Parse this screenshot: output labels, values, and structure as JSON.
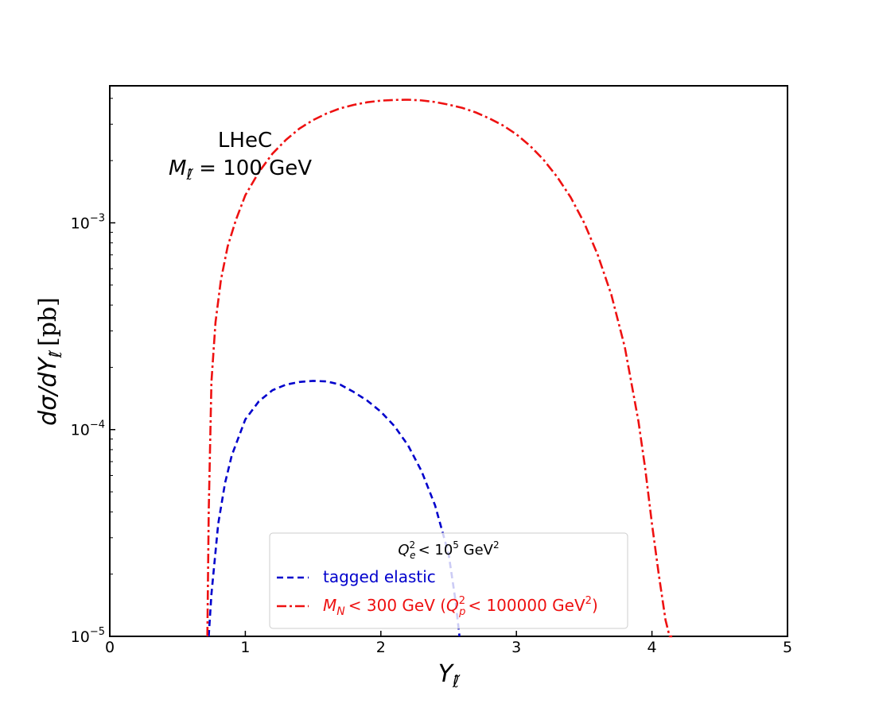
{
  "chart_data": {
    "type": "line",
    "xlabel_main": "Y",
    "xlabel_sub": "ℓ̃",
    "ylabel_main": "dσ/dY",
    "ylabel_sub": "ℓ̃",
    "ylabel_unit": "[pb]",
    "xlim": [
      0,
      5
    ],
    "ylim": [
      1e-05,
      0.0046
    ],
    "yscale": "log",
    "x_ticks": [
      0,
      1,
      2,
      3,
      4,
      5
    ],
    "x_tick_labels": [
      "0",
      "1",
      "2",
      "3",
      "4",
      "5"
    ],
    "y_ticks": [
      {
        "value": 0.001,
        "base": "10",
        "exp": "−3"
      },
      {
        "value": 0.0001,
        "base": "10",
        "exp": "−4"
      },
      {
        "value": 1e-05,
        "base": "10",
        "exp": "−5"
      }
    ],
    "grid": false,
    "annotation": {
      "line1": "LHeC",
      "line2_var": "M",
      "line2_sub": "ℓ̃",
      "line2_rest": " = 100 GeV"
    },
    "legend": {
      "placement": "lower-center",
      "title_var": "Q",
      "title_sub": "e",
      "title_sup": "2",
      "title_mid": "< 10",
      "title_exp": "5",
      "title_unit": " GeV",
      "title_unit_sup": "2"
    },
    "series": [
      {
        "name": "tagged elastic",
        "color": "#0000cc",
        "style": "dashed",
        "x": [
          0.73,
          0.75,
          0.8,
          0.85,
          0.9,
          1.0,
          1.1,
          1.2,
          1.3,
          1.4,
          1.5,
          1.6,
          1.7,
          1.8,
          1.9,
          2.0,
          2.1,
          2.2,
          2.3,
          2.4,
          2.5,
          2.55,
          2.58
        ],
        "y": [
          1e-05,
          1.6e-05,
          3.5e-05,
          5.5e-05,
          7.5e-05,
          0.000112,
          0.000137,
          0.000155,
          0.000165,
          0.00017,
          0.000172,
          0.000171,
          0.000165,
          0.000152,
          0.000138,
          0.000122,
          0.000104,
          8.4e-05,
          6.3e-05,
          4.3e-05,
          2.5e-05,
          1.5e-05,
          1e-05
        ]
      },
      {
        "name_var": "M",
        "name_sub": "N",
        "name_rest": "< 300 GeV (",
        "name_var2": "Q",
        "name_sub2": "p",
        "name_sup2": "2",
        "name_rest2": "< 100000 GeV",
        "name_sup3": "2",
        "name_end": ")",
        "color": "#ee1111",
        "style": "dashdot",
        "x": [
          0.72,
          0.73,
          0.75,
          0.78,
          0.82,
          0.87,
          0.93,
          1.0,
          1.1,
          1.2,
          1.3,
          1.4,
          1.5,
          1.6,
          1.7,
          1.8,
          1.9,
          2.0,
          2.1,
          2.2,
          2.3,
          2.4,
          2.5,
          2.6,
          2.7,
          2.8,
          2.9,
          3.0,
          3.1,
          3.2,
          3.3,
          3.4,
          3.5,
          3.6,
          3.7,
          3.8,
          3.9,
          3.95,
          4.0,
          4.05,
          4.1,
          4.13,
          4.15
        ],
        "y": [
          1e-05,
          4e-05,
          0.00017,
          0.00033,
          0.00053,
          0.00077,
          0.00103,
          0.00136,
          0.00176,
          0.00216,
          0.00252,
          0.00286,
          0.00314,
          0.00338,
          0.00358,
          0.00372,
          0.00383,
          0.0039,
          0.00393,
          0.00394,
          0.00391,
          0.00384,
          0.00373,
          0.0036,
          0.00342,
          0.0032,
          0.00296,
          0.00268,
          0.00236,
          0.00202,
          0.00167,
          0.00133,
          0.001,
          0.0007,
          0.00045,
          0.00025,
          0.00011,
          6.5e-05,
          3.5e-05,
          2e-05,
          1.2e-05,
          1e-05,
          1e-05
        ]
      }
    ]
  }
}
